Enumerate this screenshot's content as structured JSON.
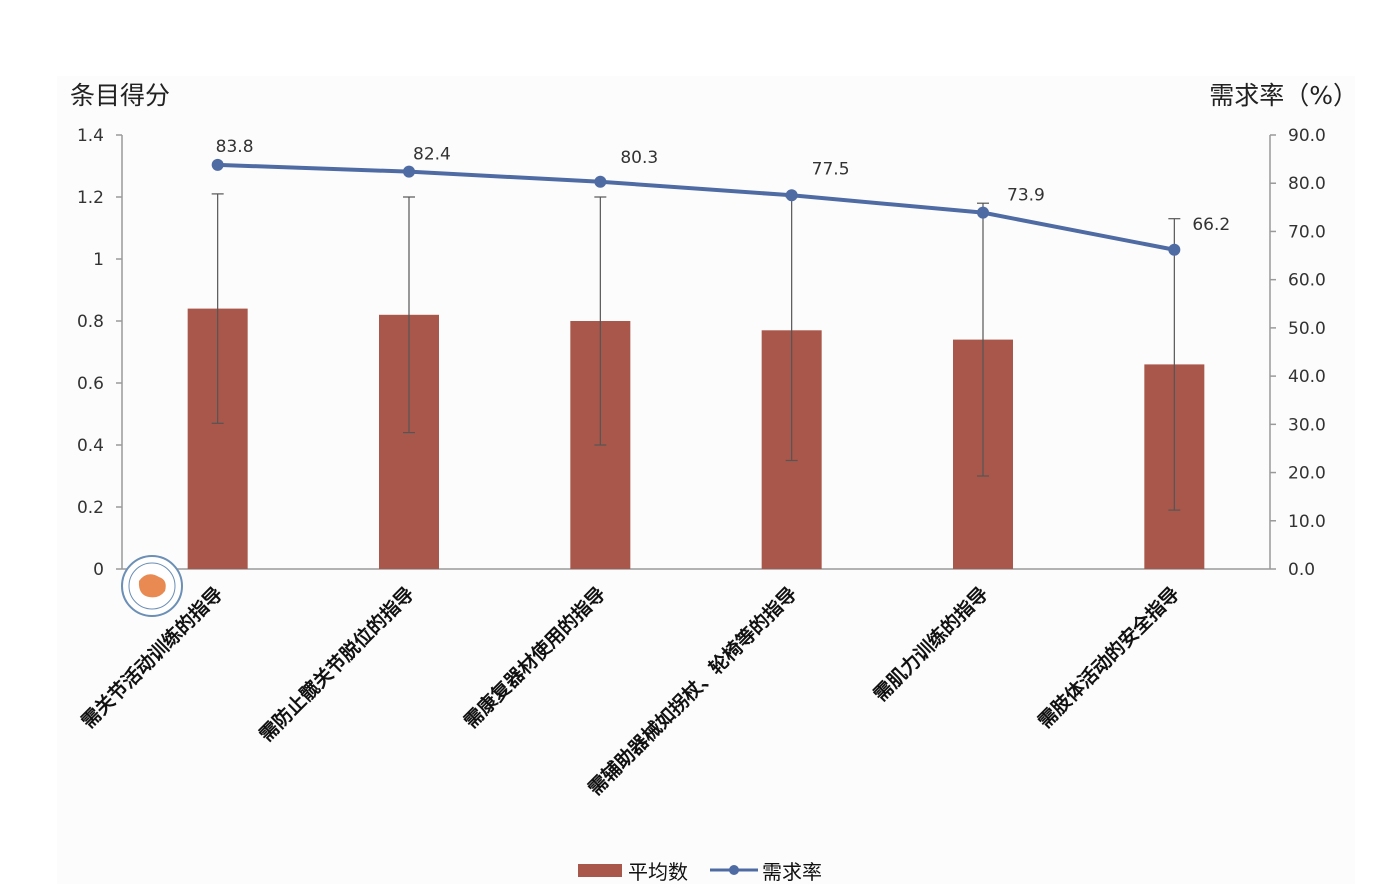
{
  "chart_data": {
    "type": "bar+line",
    "categories": [
      "需关节活动训练的指导",
      "需防止髋关节脱位的指导",
      "需康复器材使用的指导",
      "需辅助器械如拐杖、轮椅等的指导",
      "需肌力训练的指导",
      "需肢体活动的安全指导"
    ],
    "series": [
      {
        "name": "平均数",
        "type": "bar",
        "axis": "left",
        "values": [
          0.84,
          0.82,
          0.8,
          0.77,
          0.74,
          0.66
        ],
        "error_low": [
          0.47,
          0.44,
          0.4,
          0.35,
          0.3,
          0.19
        ],
        "error_high": [
          1.21,
          1.2,
          1.2,
          1.2,
          1.18,
          1.13
        ]
      },
      {
        "name": "需求率",
        "type": "line",
        "axis": "right",
        "values": [
          83.8,
          82.4,
          80.3,
          77.5,
          73.9,
          66.2
        ],
        "labels": [
          "83.8",
          "82.4",
          "80.3",
          "77.5",
          "73.9",
          "66.2"
        ]
      }
    ],
    "ylabel_left": "条目得分",
    "ylabel_right": "需求率（%）",
    "ylim_left": [
      0,
      1.4
    ],
    "ylim_right": [
      0,
      90
    ],
    "yticks_left": [
      "0",
      "0.2",
      "0.4",
      "0.6",
      "0.8",
      "1",
      "1.2",
      "1.4"
    ],
    "yticks_right": [
      "0.0",
      "10.0",
      "20.0",
      "30.0",
      "40.0",
      "50.0",
      "60.0",
      "70.0",
      "80.0",
      "90.0"
    ],
    "grid": false,
    "legend": "bottom",
    "colors": {
      "bar": "#a9574a",
      "line": "#4f6ba3",
      "error": "#555555"
    }
  }
}
